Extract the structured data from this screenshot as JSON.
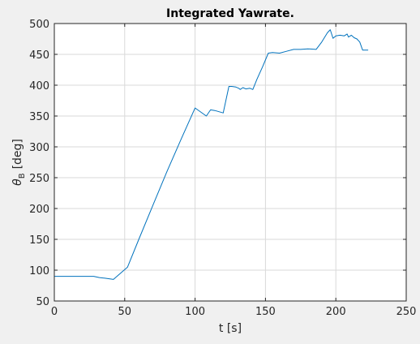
{
  "colors": {
    "figure_background": "#f0f0f0",
    "axes_background": "#ffffff",
    "grid": "#d9d9d9",
    "axis": "#262626",
    "line": "#0072bd"
  },
  "chart_data": {
    "type": "line",
    "title": "Integrated Yawrate.",
    "xlabel": "t [s]",
    "ylabel_main": "θ",
    "ylabel_sub": "B",
    "ylabel_unit": "[deg]",
    "xlim": [
      0,
      250
    ],
    "ylim": [
      50,
      500
    ],
    "xticks": [
      0,
      50,
      100,
      150,
      200,
      250
    ],
    "yticks": [
      50,
      100,
      150,
      200,
      250,
      300,
      350,
      400,
      450,
      500
    ],
    "grid": true,
    "series": [
      {
        "x": [
          0,
          10,
          20,
          28,
          32,
          36,
          42,
          52,
          60,
          70,
          80,
          90,
          100,
          108,
          111,
          114,
          117,
          120,
          124,
          126,
          129,
          131,
          132,
          134,
          136,
          139,
          141,
          144,
          148,
          152,
          155,
          160,
          165,
          170,
          175,
          180,
          186,
          190,
          194,
          196,
          198,
          200,
          203,
          206,
          208,
          209,
          211,
          213,
          215,
          217,
          219,
          223
        ],
        "y": [
          90,
          90,
          90,
          90,
          88,
          87,
          85,
          105,
          150,
          205,
          260,
          312,
          363,
          350,
          360,
          359,
          357,
          355,
          398,
          398,
          397,
          395,
          393,
          396,
          394,
          395,
          393,
          410,
          430,
          452,
          453,
          452,
          455,
          458,
          458,
          459,
          458,
          470,
          485,
          490,
          476,
          480,
          481,
          480,
          483,
          478,
          481,
          477,
          475,
          470,
          457,
          457
        ]
      }
    ]
  }
}
